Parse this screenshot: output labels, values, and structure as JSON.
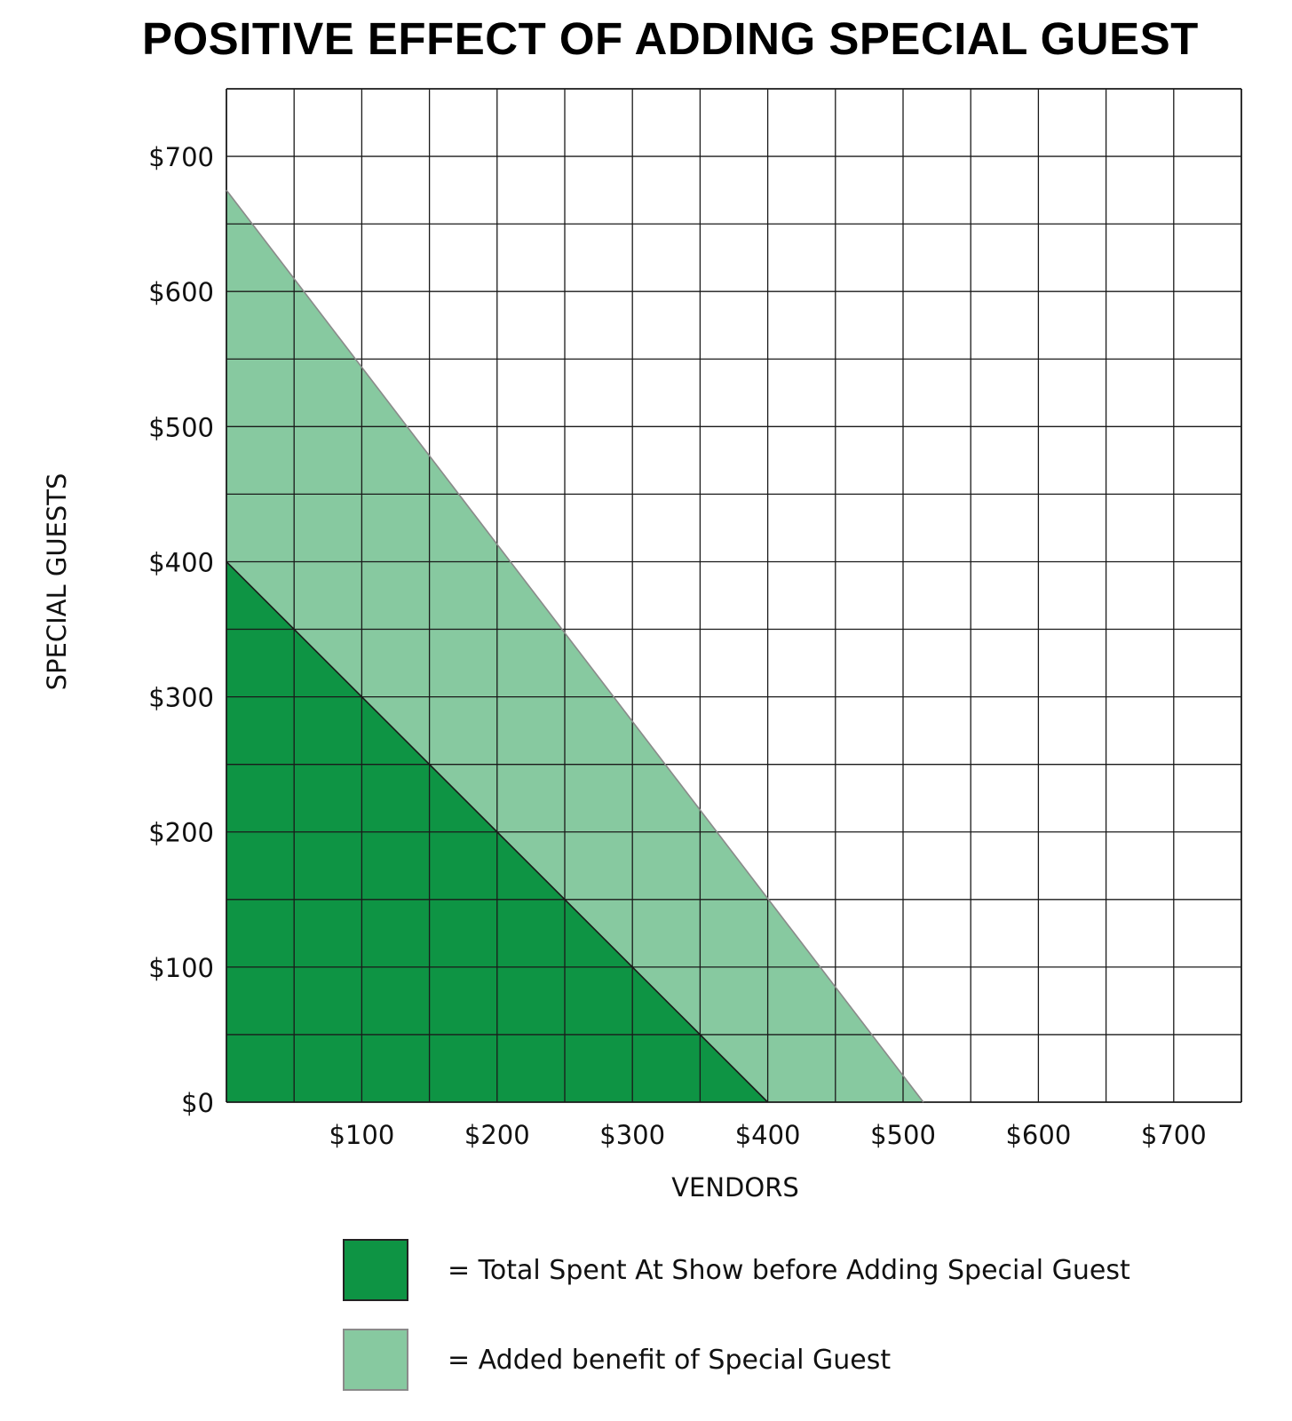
{
  "chart_data": {
    "type": "area",
    "title": "POSITIVE EFFECT OF ADDING SPECIAL GUEST",
    "xlabel": "VENDORS",
    "ylabel": "SPECIAL GUESTS",
    "xlim": [
      0,
      750
    ],
    "ylim": [
      0,
      750
    ],
    "grid": true,
    "grid_step": 50,
    "x_ticks": [
      {
        "value": 100,
        "label": "$100"
      },
      {
        "value": 200,
        "label": "$200"
      },
      {
        "value": 300,
        "label": "$300"
      },
      {
        "value": 400,
        "label": "$400"
      },
      {
        "value": 500,
        "label": "$500"
      },
      {
        "value": 600,
        "label": "$600"
      },
      {
        "value": 700,
        "label": "$700"
      }
    ],
    "y_ticks": [
      {
        "value": 0,
        "label": "$0"
      },
      {
        "value": 100,
        "label": "$100"
      },
      {
        "value": 200,
        "label": "$200"
      },
      {
        "value": 300,
        "label": "$300"
      },
      {
        "value": 400,
        "label": "$400"
      },
      {
        "value": 500,
        "label": "$500"
      },
      {
        "value": 600,
        "label": "$600"
      },
      {
        "value": 700,
        "label": "$700"
      }
    ],
    "series": [
      {
        "name": "Added benefit of Special Guest",
        "color": "#87c9a0",
        "edge_color": "#8a8a8a",
        "x": [
          0,
          515
        ],
        "y": [
          675,
          0
        ]
      },
      {
        "name": "Total Spent At Show before Adding Special Guest",
        "color": "#0e9444",
        "edge_color": "#1a1a1a",
        "x": [
          0,
          400
        ],
        "y": [
          400,
          0
        ]
      }
    ],
    "legend": {
      "placement": "bottom",
      "items": [
        {
          "text": "= Total Spent At Show before Adding Special Guest",
          "color": "#0e9444"
        },
        {
          "text": "= Added benefit of Special Guest",
          "color": "#87c9a0"
        }
      ]
    }
  }
}
